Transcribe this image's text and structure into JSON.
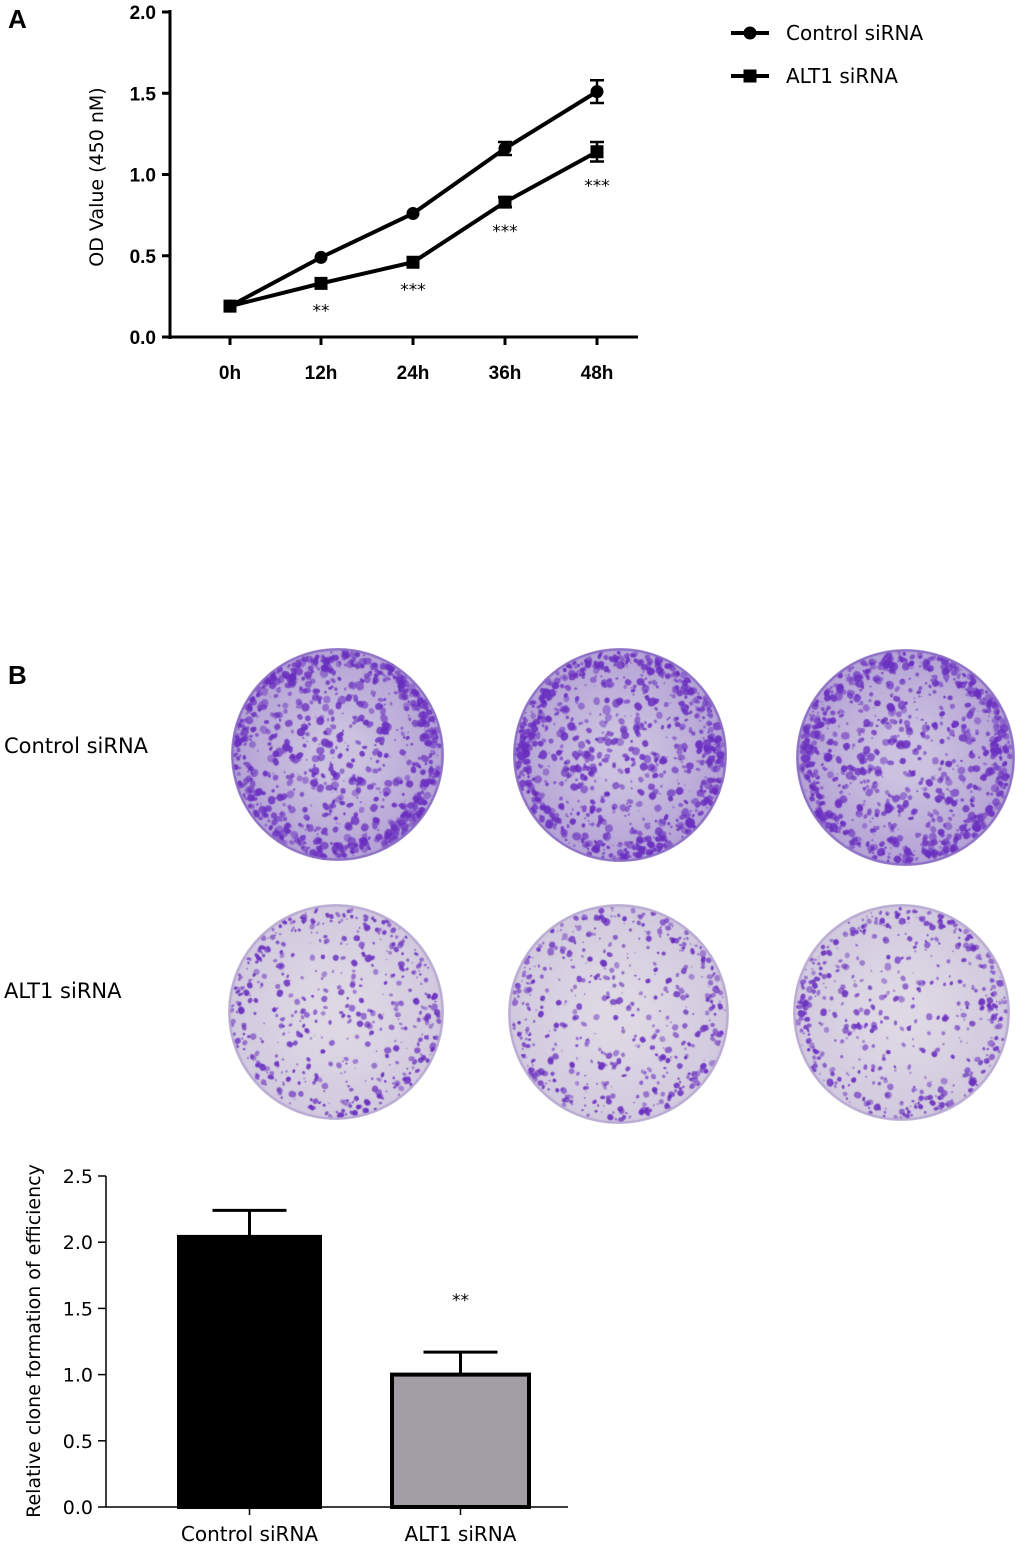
{
  "panels": {
    "a_letter": "A",
    "b_letter": "B"
  },
  "chart_data": [
    {
      "type": "line",
      "title": "",
      "xlabel": "",
      "ylabel": "OD  Value  (450 nM)",
      "categories": [
        "0h",
        "12h",
        "24h",
        "36h",
        "48h"
      ],
      "ylim": [
        0,
        2.0
      ],
      "yticks": [
        "0.0",
        "0.5",
        "1.0",
        "1.5",
        "2.0"
      ],
      "legend_position": "top-right",
      "series": [
        {
          "name": "Control siRNA",
          "marker": "circle",
          "values": [
            0.19,
            0.49,
            0.76,
            1.16,
            1.51
          ],
          "errors": [
            0.02,
            0.02,
            0.02,
            0.04,
            0.07
          ]
        },
        {
          "name": "ALT1 siRNA",
          "marker": "square",
          "values": [
            0.19,
            0.33,
            0.46,
            0.83,
            1.14
          ],
          "errors": [
            0.02,
            0.02,
            0.02,
            0.03,
            0.06
          ]
        }
      ],
      "annotations": [
        "",
        "**",
        "***",
        "***",
        "***"
      ]
    },
    {
      "type": "bar",
      "title": "",
      "xlabel": "",
      "ylabel": "Relative clone  formation of efficiency",
      "categories": [
        "Control siRNA",
        "ALT1 siRNA"
      ],
      "values": [
        2.04,
        1.0
      ],
      "errors": [
        0.2,
        0.17
      ],
      "ylim": [
        0,
        2.5
      ],
      "yticks": [
        "0.0",
        "0.5",
        "1.0",
        "1.5",
        "2.0",
        "2.5"
      ],
      "annotations": [
        "",
        "**"
      ],
      "colors": [
        "#000000",
        "#a19da4"
      ]
    }
  ],
  "plates": {
    "rows": [
      {
        "label": "Control siRNA",
        "density": "high"
      },
      {
        "label": "ALT1 siRNA",
        "density": "low"
      }
    ],
    "stain_color": "#6a2fc0",
    "plate_color": "#d9d3e0"
  }
}
